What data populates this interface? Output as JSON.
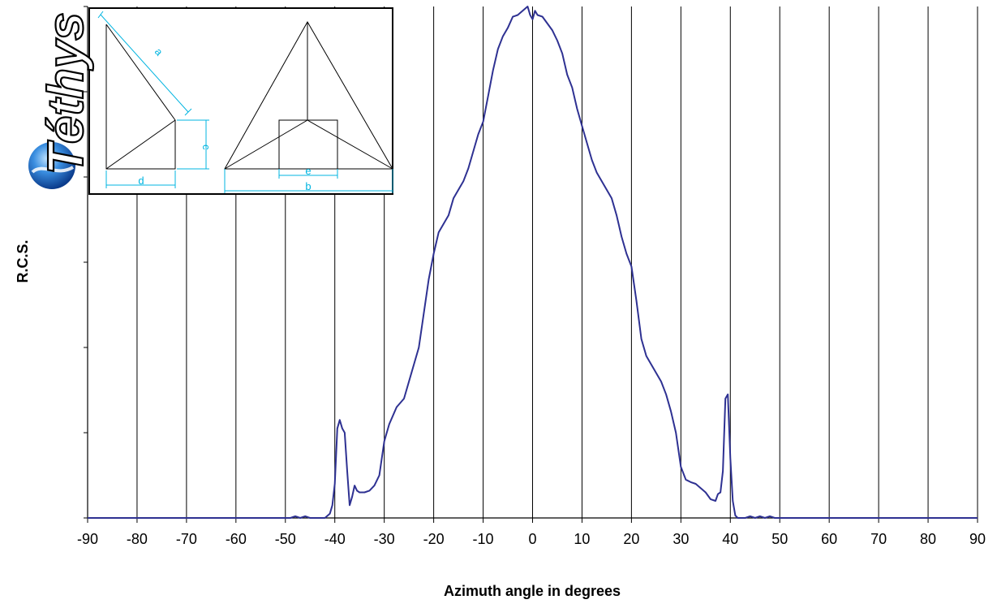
{
  "chart_data": {
    "type": "line",
    "xlabel": "Azimuth angle in degrees",
    "ylabel": "R.C.S.",
    "xlim": [
      -90,
      90
    ],
    "ylim": [
      0,
      6
    ],
    "x_ticks": [
      "-90",
      "-80",
      "-70",
      "-60",
      "-50",
      "-40",
      "-30",
      "-20",
      "-10",
      "0",
      "10",
      "20",
      "30",
      "40",
      "50",
      "60",
      "70",
      "80",
      "90"
    ],
    "grid": "vertical",
    "line_color": "#2e3192",
    "series": [
      {
        "points": [
          [
            -90,
            0
          ],
          [
            -50,
            0
          ],
          [
            -49,
            0
          ],
          [
            -48,
            0.02
          ],
          [
            -47,
            0
          ],
          [
            -46,
            0.02
          ],
          [
            -45,
            0
          ],
          [
            -44,
            0
          ],
          [
            -43,
            0
          ],
          [
            -42,
            0
          ],
          [
            -41,
            0.05
          ],
          [
            -40.5,
            0.15
          ],
          [
            -40,
            0.4
          ],
          [
            -39.5,
            1.05
          ],
          [
            -39,
            1.15
          ],
          [
            -38.5,
            1.05
          ],
          [
            -38,
            1.0
          ],
          [
            -37.5,
            0.55
          ],
          [
            -37,
            0.15
          ],
          [
            -36.5,
            0.25
          ],
          [
            -36,
            0.38
          ],
          [
            -35.5,
            0.32
          ],
          [
            -35,
            0.3
          ],
          [
            -34,
            0.3
          ],
          [
            -33,
            0.32
          ],
          [
            -32,
            0.38
          ],
          [
            -31,
            0.5
          ],
          [
            -30,
            0.9
          ],
          [
            -29,
            1.1
          ],
          [
            -27.5,
            1.3
          ],
          [
            -26,
            1.4
          ],
          [
            -25,
            1.6
          ],
          [
            -24,
            1.8
          ],
          [
            -23,
            2.0
          ],
          [
            -22,
            2.4
          ],
          [
            -21,
            2.8
          ],
          [
            -20,
            3.1
          ],
          [
            -19,
            3.35
          ],
          [
            -18,
            3.45
          ],
          [
            -17,
            3.55
          ],
          [
            -16,
            3.75
          ],
          [
            -15,
            3.85
          ],
          [
            -14,
            3.95
          ],
          [
            -13,
            4.1
          ],
          [
            -12,
            4.3
          ],
          [
            -11,
            4.5
          ],
          [
            -10,
            4.65
          ],
          [
            -9,
            4.95
          ],
          [
            -8,
            5.25
          ],
          [
            -7,
            5.5
          ],
          [
            -6,
            5.65
          ],
          [
            -5,
            5.75
          ],
          [
            -4,
            5.88
          ],
          [
            -3,
            5.9
          ],
          [
            -2,
            5.95
          ],
          [
            -1,
            6.0
          ],
          [
            -0.5,
            5.9
          ],
          [
            0,
            5.85
          ],
          [
            0.5,
            5.95
          ],
          [
            1,
            5.9
          ],
          [
            2,
            5.88
          ],
          [
            3,
            5.8
          ],
          [
            4,
            5.72
          ],
          [
            5,
            5.6
          ],
          [
            6,
            5.45
          ],
          [
            7,
            5.2
          ],
          [
            8,
            5.05
          ],
          [
            9,
            4.8
          ],
          [
            10,
            4.6
          ],
          [
            11,
            4.4
          ],
          [
            12,
            4.2
          ],
          [
            13,
            4.05
          ],
          [
            14,
            3.95
          ],
          [
            15,
            3.85
          ],
          [
            16,
            3.75
          ],
          [
            17,
            3.55
          ],
          [
            18,
            3.3
          ],
          [
            19,
            3.1
          ],
          [
            20,
            2.95
          ],
          [
            21,
            2.55
          ],
          [
            22,
            2.1
          ],
          [
            23,
            1.9
          ],
          [
            24,
            1.8
          ],
          [
            25,
            1.7
          ],
          [
            26,
            1.6
          ],
          [
            27,
            1.45
          ],
          [
            28,
            1.25
          ],
          [
            29,
            1.0
          ],
          [
            30,
            0.6
          ],
          [
            31,
            0.45
          ],
          [
            32,
            0.42
          ],
          [
            33,
            0.4
          ],
          [
            34,
            0.35
          ],
          [
            35,
            0.3
          ],
          [
            36,
            0.22
          ],
          [
            37,
            0.2
          ],
          [
            37.5,
            0.28
          ],
          [
            38,
            0.3
          ],
          [
            38.5,
            0.55
          ],
          [
            39,
            1.4
          ],
          [
            39.5,
            1.45
          ],
          [
            40,
            0.7
          ],
          [
            40.5,
            0.2
          ],
          [
            41,
            0.03
          ],
          [
            41.5,
            0
          ],
          [
            43,
            0
          ],
          [
            44,
            0.02
          ],
          [
            45,
            0
          ],
          [
            46,
            0.02
          ],
          [
            47,
            0
          ],
          [
            48,
            0.02
          ],
          [
            49,
            0
          ],
          [
            90,
            0
          ]
        ]
      }
    ]
  },
  "inset": {
    "labels": {
      "a": "a",
      "c": "c",
      "d": "d",
      "e": "e",
      "b": "b"
    }
  }
}
